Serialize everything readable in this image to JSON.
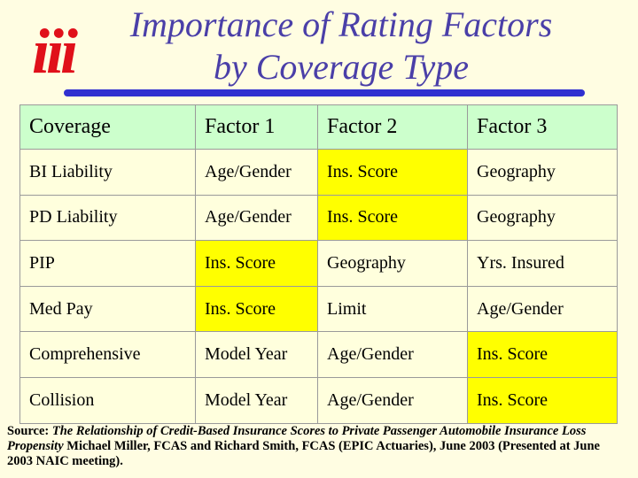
{
  "header": {
    "logo": "iii",
    "title_lines": [
      "Importance of Rating Factors",
      "by Coverage Type"
    ]
  },
  "table": {
    "header_color": "#ccffcc",
    "body_color": "#ffffdd",
    "highlight_color": "#ffff00",
    "columns": [
      "Coverage",
      "Factor 1",
      "Factor 2",
      "Factor 3"
    ],
    "rows": [
      {
        "cells": [
          "BI Liability",
          "Age/Gender",
          "Ins. Score",
          "Geography"
        ],
        "highlight": 2
      },
      {
        "cells": [
          "PD Liability",
          "Age/Gender",
          "Ins. Score",
          "Geography"
        ],
        "highlight": 2
      },
      {
        "cells": [
          "PIP",
          "Ins. Score",
          "Geography",
          "Yrs. Insured"
        ],
        "highlight": 1
      },
      {
        "cells": [
          "Med Pay",
          "Ins. Score",
          "Limit",
          "Age/Gender"
        ],
        "highlight": 1
      },
      {
        "cells": [
          "Comprehensive",
          "Model Year",
          "Age/Gender",
          "Ins. Score"
        ],
        "highlight": 3
      },
      {
        "cells": [
          "Collision",
          "Model Year",
          "Age/Gender",
          "Ins. Score"
        ],
        "highlight": 3
      }
    ]
  },
  "source": {
    "label": "Source:",
    "title": "The Relationship of Credit-Based Insurance Scores to Private Passenger Automobile Insurance Loss Propensity",
    "credit": "Michael Miller, FCAS and Richard Smith, FCAS (EPIC Actuaries), June 2003 (Presented at June 2003 NAIC meeting)."
  }
}
